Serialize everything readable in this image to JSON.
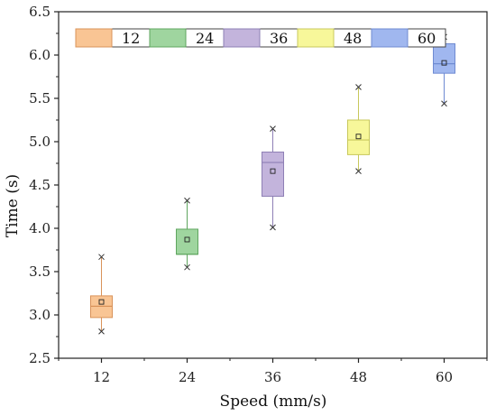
{
  "chart_data": {
    "type": "box",
    "xlabel": "Speed (mm/s)",
    "ylabel": "Time (s)",
    "categories": [
      "12",
      "24",
      "36",
      "48",
      "60"
    ],
    "ylim": [
      2.5,
      6.5
    ],
    "yticks": [
      "2.5",
      "3.0",
      "3.5",
      "4.0",
      "4.5",
      "5.0",
      "5.5",
      "6.0",
      "6.5"
    ],
    "grid": false,
    "legend": {
      "placement": "top",
      "entries": [
        "12",
        "24",
        "36",
        "48",
        "60"
      ]
    },
    "series": [
      {
        "name": "12",
        "q1": 2.97,
        "median": 3.1,
        "q3": 3.22,
        "mean": 3.15,
        "min": 2.81,
        "max": 3.67,
        "color": "#f9c594",
        "edge": "#d9935a"
      },
      {
        "name": "24",
        "q1": 3.7,
        "median": 3.7,
        "q3": 3.99,
        "mean": 3.87,
        "min": 3.55,
        "max": 4.32,
        "color": "#9fd59f",
        "edge": "#5fa65f"
      },
      {
        "name": "36",
        "q1": 4.37,
        "median": 4.76,
        "q3": 4.88,
        "mean": 4.66,
        "min": 4.01,
        "max": 5.15,
        "color": "#c3b4dc",
        "edge": "#8e7fb5"
      },
      {
        "name": "48",
        "q1": 4.85,
        "median": 5.02,
        "q3": 5.25,
        "mean": 5.06,
        "min": 4.66,
        "max": 5.63,
        "color": "#f7f79a",
        "edge": "#c8c85c"
      },
      {
        "name": "60",
        "q1": 5.79,
        "median": 5.9,
        "q3": 6.13,
        "mean": 5.91,
        "min": 5.44,
        "max": 6.21,
        "color": "#a0b7ef",
        "edge": "#6f8bd2"
      }
    ]
  }
}
